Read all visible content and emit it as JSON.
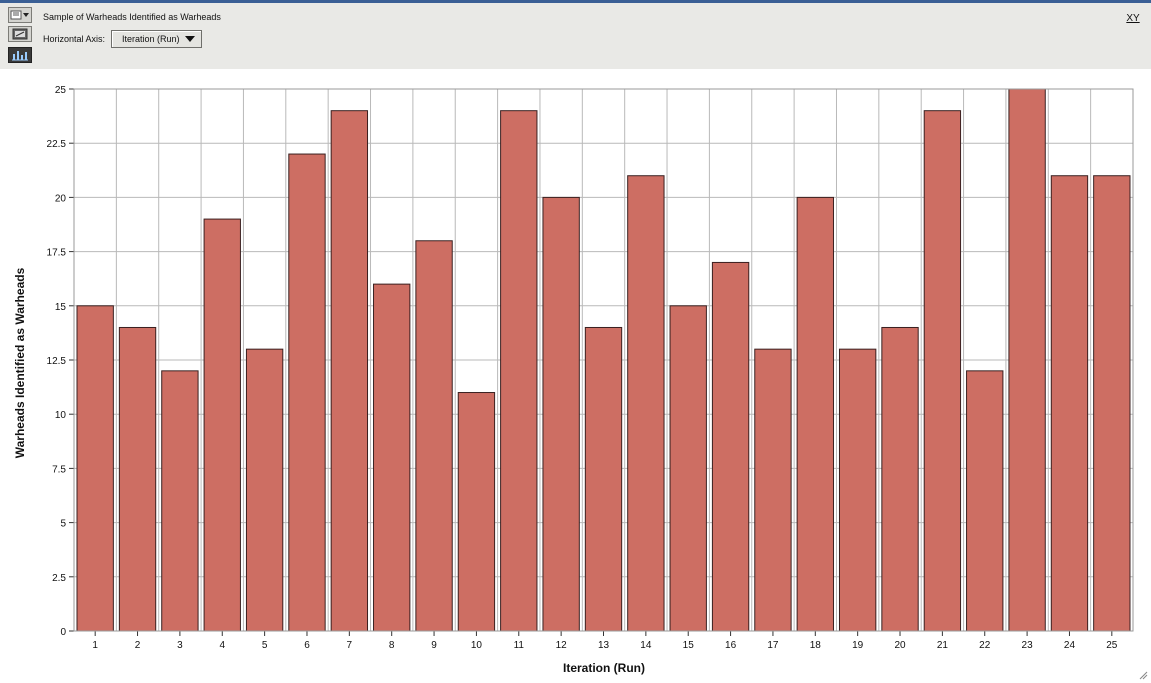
{
  "toolbar": {
    "title": "Sample of Warheads Identified as Warheads",
    "horizontal_axis_label": "Horizontal Axis:",
    "horizontal_axis_value": "Iteration (Run)",
    "xy_button_label": "XY",
    "buttons": [
      {
        "name": "dropdown-menu-icon"
      },
      {
        "name": "chart-type-icon"
      },
      {
        "name": "bar-chart-icon",
        "active": true
      }
    ]
  },
  "colors": {
    "bar_fill": "#cd6e63",
    "bar_stroke": "#3a2020",
    "grid": "#b9b9b9",
    "toolbar_bg": "#e9e9e6"
  },
  "chart_data": {
    "type": "bar",
    "xlabel": "Iteration (Run)",
    "ylabel": "Warheads Identified as Warheads",
    "categories": [
      "1",
      "2",
      "3",
      "4",
      "5",
      "6",
      "7",
      "8",
      "9",
      "10",
      "11",
      "12",
      "13",
      "14",
      "15",
      "16",
      "17",
      "18",
      "19",
      "20",
      "21",
      "22",
      "23",
      "24",
      "25"
    ],
    "values": [
      15,
      14,
      12,
      19,
      13,
      22,
      24,
      16,
      18,
      11,
      24,
      20,
      14,
      21,
      15,
      17,
      13,
      20,
      13,
      14,
      24,
      12,
      25,
      21,
      21
    ],
    "ylim": [
      0,
      25
    ],
    "yticks": [
      "0",
      "2.5",
      "5",
      "7.5",
      "10",
      "12.5",
      "15",
      "17.5",
      "20",
      "22.5",
      "25"
    ],
    "ytick_values": [
      0,
      2.5,
      5,
      7.5,
      10,
      12.5,
      15,
      17.5,
      20,
      22.5,
      25
    ],
    "grid": true,
    "legend": false
  }
}
